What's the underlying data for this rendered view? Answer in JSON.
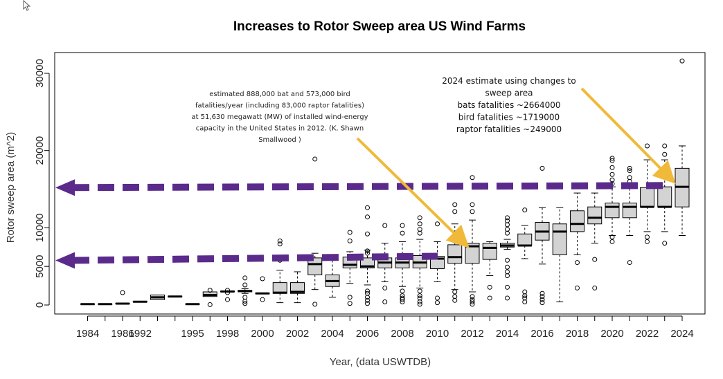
{
  "chart_data": {
    "type": "box",
    "title": "Increases to Rotor Sweep area US Wind Farms",
    "xlabel": "Year, (data USWTDB)",
    "ylabel": "Rotor sweep area (m^2)",
    "ylim": [
      -1200,
      33000
    ],
    "y_ticks": [
      0,
      5000,
      10000,
      20000,
      30000
    ],
    "y_tick_labels": [
      "0",
      "5000",
      "10000",
      "20000",
      "30000"
    ],
    "x_tick_labels": [
      "1984",
      "1986",
      "1992",
      "1995",
      "1998",
      "2000",
      "2002",
      "2004",
      "2006",
      "2008",
      "2010",
      "2012",
      "2014",
      "2016",
      "2018",
      "2020",
      "2022",
      "2024"
    ],
    "boxes": [
      {
        "cat": "1984",
        "q1": 90,
        "med": 110,
        "q3": 130,
        "lo": 90,
        "hi": 130,
        "out": []
      },
      {
        "cat": "1985",
        "q1": 90,
        "med": 110,
        "q3": 130,
        "lo": 90,
        "hi": 130,
        "out": []
      },
      {
        "cat": "1986",
        "q1": 150,
        "med": 180,
        "q3": 220,
        "lo": 150,
        "hi": 220,
        "out": [
          1600
        ]
      },
      {
        "cat": "1992",
        "q1": 380,
        "med": 420,
        "q3": 460,
        "lo": 380,
        "hi": 460,
        "out": []
      },
      {
        "cat": "1993",
        "q1": 700,
        "med": 1000,
        "q3": 1300,
        "lo": 700,
        "hi": 1300,
        "out": []
      },
      {
        "cat": "1994",
        "q1": 1050,
        "med": 1100,
        "q3": 1150,
        "lo": 1050,
        "hi": 1150,
        "out": []
      },
      {
        "cat": "1995",
        "q1": 80,
        "med": 110,
        "q3": 140,
        "lo": 80,
        "hi": 140,
        "out": []
      },
      {
        "cat": "1997",
        "q1": 1100,
        "med": 1300,
        "q3": 1700,
        "lo": 1100,
        "hi": 1700,
        "out": [
          1900,
          50
        ]
      },
      {
        "cat": "1998",
        "q1": 1700,
        "med": 1750,
        "q3": 1800,
        "lo": 1700,
        "hi": 1800,
        "out": [
          1900,
          1600,
          700
        ]
      },
      {
        "cat": "1999",
        "q1": 1700,
        "med": 1800,
        "q3": 1900,
        "lo": 1500,
        "hi": 2100,
        "out": [
          3500,
          2600,
          1000,
          500,
          200
        ]
      },
      {
        "cat": "2000",
        "q1": 1450,
        "med": 1500,
        "q3": 1550,
        "lo": 1450,
        "hi": 1550,
        "out": [
          3400,
          700
        ]
      },
      {
        "cat": "2001",
        "q1": 1500,
        "med": 1600,
        "q3": 2900,
        "lo": 300,
        "hi": 4500,
        "out": [
          8300,
          7900,
          6000,
          5800
        ]
      },
      {
        "cat": "2002",
        "q1": 1500,
        "med": 1700,
        "q3": 2900,
        "lo": 300,
        "hi": 4300,
        "out": []
      },
      {
        "cat": "2003",
        "q1": 3900,
        "med": 5300,
        "q3": 6100,
        "lo": 2000,
        "hi": 6700,
        "out": [
          18900,
          100
        ]
      },
      {
        "cat": "2004",
        "q1": 2400,
        "med": 3100,
        "q3": 3900,
        "lo": 1000,
        "hi": 5800,
        "out": []
      },
      {
        "cat": "2005",
        "q1": 4800,
        "med": 5200,
        "q3": 6200,
        "lo": 2800,
        "hi": 6900,
        "out": [
          9400,
          8300,
          1000,
          200
        ]
      },
      {
        "cat": "2006",
        "q1": 4800,
        "med": 5000,
        "q3": 6100,
        "lo": 2600,
        "hi": 7100,
        "out": [
          12600,
          11400,
          9200,
          7000,
          6700,
          1800,
          1500,
          1000,
          600,
          200
        ]
      },
      {
        "cat": "2007",
        "q1": 4800,
        "med": 5500,
        "q3": 6100,
        "lo": 3000,
        "hi": 8000,
        "out": [
          10300,
          2200,
          400
        ]
      },
      {
        "cat": "2008",
        "q1": 4800,
        "med": 5500,
        "q3": 6100,
        "lo": 2400,
        "hi": 8200,
        "out": [
          10300,
          9300,
          1800,
          1200,
          900,
          700,
          400
        ]
      },
      {
        "cat": "2009",
        "q1": 4800,
        "med": 5500,
        "q3": 6400,
        "lo": 2200,
        "hi": 8500,
        "out": [
          11300,
          10500,
          9800,
          9300,
          1800,
          1200,
          900,
          400,
          100
        ]
      },
      {
        "cat": "2010",
        "q1": 4700,
        "med": 6000,
        "q3": 6300,
        "lo": 3000,
        "hi": 8200,
        "out": [
          10500,
          900,
          300
        ]
      },
      {
        "cat": "2011",
        "q1": 5400,
        "med": 6200,
        "q3": 7800,
        "lo": 2000,
        "hi": 10500,
        "out": [
          13000,
          12100,
          1700,
          1100,
          600
        ]
      },
      {
        "cat": "2012",
        "q1": 5400,
        "med": 7600,
        "q3": 8000,
        "lo": 1700,
        "hi": 11000,
        "out": [
          16500,
          13000,
          12100,
          1100,
          700,
          400,
          100
        ]
      },
      {
        "cat": "2013",
        "q1": 5900,
        "med": 7400,
        "q3": 8000,
        "lo": 3800,
        "hi": 8200,
        "out": [
          2300,
          900
        ]
      },
      {
        "cat": "2014",
        "q1": 7500,
        "med": 7700,
        "q3": 8000,
        "lo": 7200,
        "hi": 8500,
        "out": [
          11300,
          10900,
          10400,
          9800,
          9300,
          5800,
          4900,
          4300,
          3800,
          2300,
          900
        ]
      },
      {
        "cat": "2015",
        "q1": 7700,
        "med": 7700,
        "q3": 9200,
        "lo": 6000,
        "hi": 10300,
        "out": [
          12300,
          1700,
          1200,
          900,
          400
        ]
      },
      {
        "cat": "2016",
        "q1": 8400,
        "med": 9500,
        "q3": 10700,
        "lo": 5300,
        "hi": 12600,
        "out": [
          17700,
          1500,
          1100,
          700,
          300
        ]
      },
      {
        "cat": "2017",
        "q1": 6500,
        "med": 9500,
        "q3": 10500,
        "lo": 400,
        "hi": 12600,
        "out": []
      },
      {
        "cat": "2018",
        "q1": 9500,
        "med": 10500,
        "q3": 12200,
        "lo": 6500,
        "hi": 14500,
        "out": [
          5500,
          2200
        ]
      },
      {
        "cat": "2019",
        "q1": 10500,
        "med": 11300,
        "q3": 12700,
        "lo": 8000,
        "hi": 14500,
        "out": [
          5900,
          2200
        ]
      },
      {
        "cat": "2020",
        "q1": 11300,
        "med": 12700,
        "q3": 13200,
        "lo": 9000,
        "hi": 15300,
        "out": [
          19000,
          18700,
          17800,
          16900,
          16200,
          15700,
          8800,
          8200
        ]
      },
      {
        "cat": "2021",
        "q1": 11300,
        "med": 12700,
        "q3": 13200,
        "lo": 9000,
        "hi": 15500,
        "out": [
          17700,
          17400,
          16500,
          16000,
          5500
        ]
      },
      {
        "cat": "2022",
        "q1": 12700,
        "med": 12700,
        "q3": 15200,
        "lo": 9500,
        "hi": 18800,
        "out": [
          20600,
          8800,
          8200
        ]
      },
      {
        "cat": "2023",
        "q1": 12700,
        "med": 12700,
        "q3": 15300,
        "lo": 9500,
        "hi": 18800,
        "out": [
          20600,
          19500,
          8000
        ]
      },
      {
        "cat": "2024",
        "q1": 12700,
        "med": 15300,
        "q3": 17700,
        "lo": 9000,
        "hi": 20600,
        "out": [
          31600
        ]
      }
    ],
    "annotations": {
      "left_text": [
        "estimated 888,000 bat and 573,000 bird",
        "fatalities/year (including 83,000 raptor fatalities)",
        "at 51,630 megawatt (MW) of installed wind-energy",
        "capacity in the United States in 2012. (K. Shawn",
        "Smallwood )"
      ],
      "right_text": [
        "2024 estimate using changes to",
        "sweep area",
        "bats fatalities ~2664000",
        "bird fatalities ~1719000",
        "raptor fatalities ~249000"
      ],
      "arrow_color": "#f0b93a",
      "dashed_arrow_color": "#5b2b8c",
      "dashed_arrow_levels": [
        15200,
        5600
      ]
    }
  }
}
